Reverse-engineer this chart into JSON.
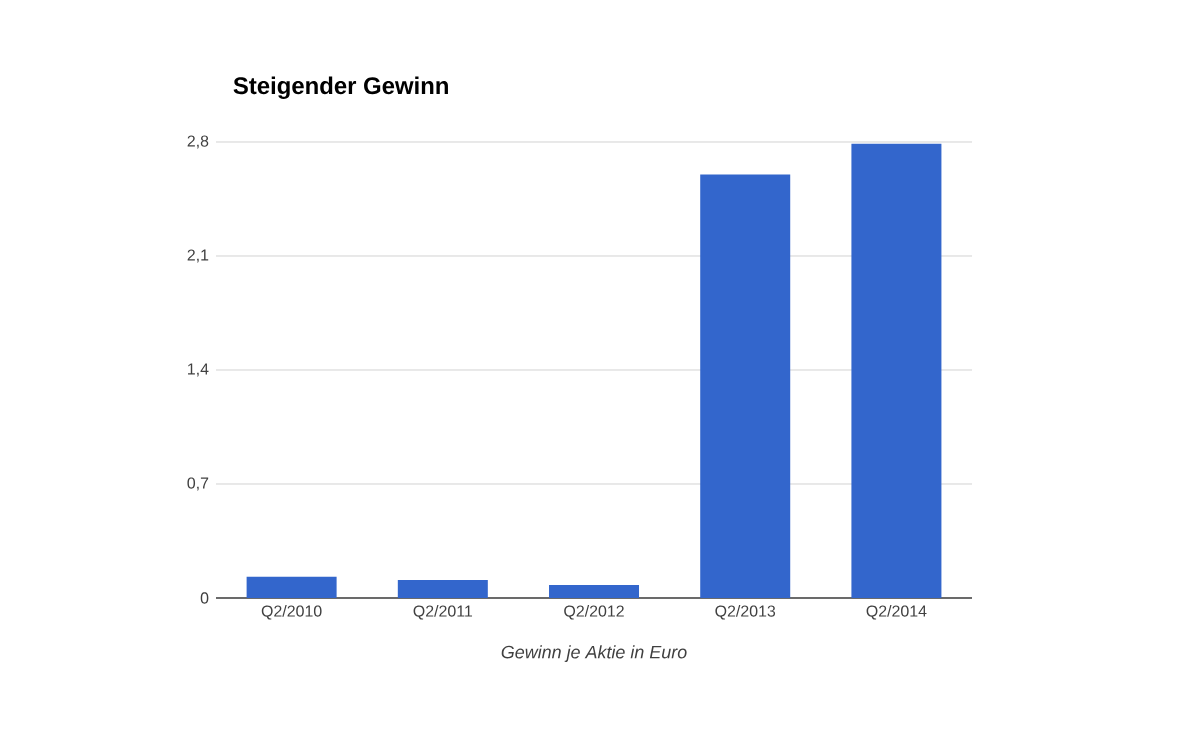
{
  "chart_data": {
    "type": "bar",
    "title": "Steigender Gewinn",
    "xlabel": "Gewinn je Aktie in Euro",
    "categories": [
      "Q2/2010",
      "Q2/2011",
      "Q2/2012",
      "Q2/2013",
      "Q2/2014"
    ],
    "values": [
      0.13,
      0.11,
      0.08,
      2.6,
      2.79
    ],
    "color": "#3366cc",
    "ylim": [
      0,
      2.8
    ],
    "yticks": [
      {
        "value": 0,
        "label": "0"
      },
      {
        "value": 0.7,
        "label": "0,7"
      },
      {
        "value": 1.4,
        "label": "1,4"
      },
      {
        "value": 2.1,
        "label": "2,1"
      },
      {
        "value": 2.8,
        "label": "2,8"
      }
    ],
    "grid": "y"
  }
}
